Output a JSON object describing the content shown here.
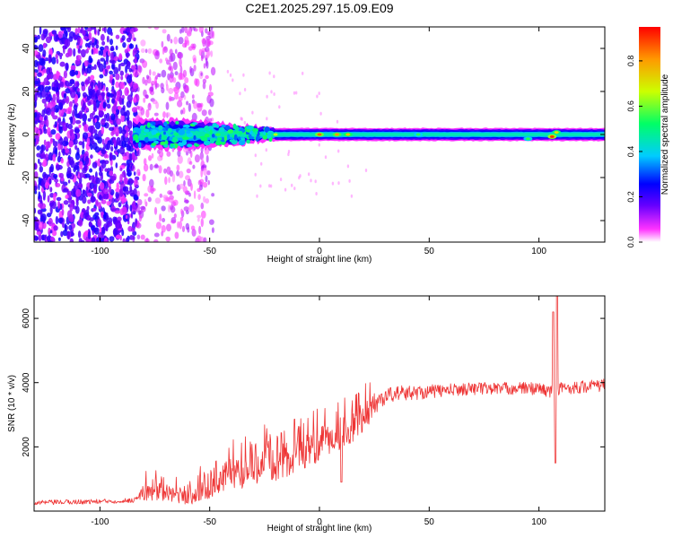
{
  "figure_title": "C2E1.2025.297.15.09.E09",
  "colors": {
    "snr_line": "#ee3333",
    "spectro_background": "#ffffff",
    "axes": "#000000"
  },
  "chart_data": [
    {
      "type": "heatmap",
      "title": "C2E1.2025.297.15.09.E09",
      "xlabel": "Height of straight line (km)",
      "ylabel": "Frequency (Hz)",
      "xlim": [
        -130,
        130
      ],
      "ylim": [
        -50,
        50
      ],
      "x_ticks": [
        -100,
        -50,
        0,
        50,
        100
      ],
      "y_ticks": [
        -40,
        -20,
        0,
        20,
        40
      ],
      "grid": false,
      "colorbar": {
        "label": "Normalized spectral amplitude",
        "range": [
          0.0,
          0.95
        ],
        "ticks": [
          "0.0",
          "0.2",
          "0.4",
          "0.6",
          "0.8"
        ],
        "colormap": [
          "#ffffff",
          "#ff33ff",
          "#6600ff",
          "#0000ff",
          "#00ccff",
          "#00ff66",
          "#ccff00",
          "#ff9900",
          "#ff0000"
        ]
      },
      "signal_band": {
        "center_hz": 0,
        "halfwidth_hz": [
          [
            -85,
            7
          ],
          [
            -60,
            7
          ],
          [
            -40,
            5
          ],
          [
            -30,
            4
          ],
          [
            -20,
            3
          ],
          [
            0,
            3
          ],
          [
            50,
            3
          ],
          [
            100,
            3
          ],
          [
            130,
            3
          ]
        ],
        "noise_regions_km": [
          [
            -130,
            -83
          ],
          [
            -85,
            -48
          ]
        ],
        "hot_spots": [
          {
            "x": 0,
            "y": 0,
            "amp": 0.85
          },
          {
            "x": 8,
            "y": 0,
            "amp": 0.8
          },
          {
            "x": 13,
            "y": 0,
            "amp": 0.75
          },
          {
            "x": 106,
            "y": -1,
            "amp": 0.9
          },
          {
            "x": 108,
            "y": 1,
            "amp": 0.7
          },
          {
            "x": -20,
            "y": 0,
            "amp": 0.65
          },
          {
            "x": 45,
            "y": 0,
            "amp": 0.55
          },
          {
            "x": 95,
            "y": -2,
            "amp": 0.55
          }
        ]
      }
    },
    {
      "type": "line",
      "xlabel": "Height of straight line (km)",
      "ylabel": "SNR (10 * v/v)",
      "xlim": [
        -130,
        130
      ],
      "ylim": [
        0,
        6700
      ],
      "x_ticks": [
        -100,
        -50,
        0,
        50,
        100
      ],
      "y_ticks": [
        2000,
        4000,
        6000
      ],
      "grid": false,
      "series": [
        {
          "name": "SNR",
          "trend_points": [
            [
              -130,
              250
            ],
            [
              -110,
              280
            ],
            [
              -95,
              300
            ],
            [
              -85,
              330
            ],
            [
              -82,
              450
            ],
            [
              -78,
              600
            ],
            [
              -70,
              550
            ],
            [
              -60,
              420
            ],
            [
              -55,
              500
            ],
            [
              -50,
              800
            ],
            [
              -45,
              950
            ],
            [
              -40,
              1100
            ],
            [
              -35,
              1150
            ],
            [
              -30,
              1300
            ],
            [
              -25,
              1450
            ],
            [
              -20,
              1400
            ],
            [
              -15,
              1450
            ],
            [
              -10,
              1700
            ],
            [
              -5,
              1800
            ],
            [
              0,
              2000
            ],
            [
              5,
              2200
            ],
            [
              10,
              2400
            ],
            [
              15,
              2600
            ],
            [
              20,
              2900
            ],
            [
              25,
              3300
            ],
            [
              30,
              3550
            ],
            [
              35,
              3650
            ],
            [
              40,
              3650
            ],
            [
              50,
              3700
            ],
            [
              60,
              3750
            ],
            [
              70,
              3800
            ],
            [
              80,
              3800
            ],
            [
              90,
              3800
            ],
            [
              100,
              3800
            ],
            [
              105,
              3700
            ],
            [
              110,
              3800
            ],
            [
              120,
              3850
            ],
            [
              130,
              3900
            ]
          ],
          "noise_amplitude": [
            [
              -130,
              150
            ],
            [
              -83,
              150
            ],
            [
              -80,
              600
            ],
            [
              -60,
              500
            ],
            [
              -50,
              900
            ],
            [
              -30,
              1100
            ],
            [
              -20,
              1000
            ],
            [
              0,
              1100
            ],
            [
              20,
              1000
            ],
            [
              30,
              500
            ],
            [
              60,
              400
            ],
            [
              130,
              400
            ]
          ],
          "features": [
            {
              "x": 10,
              "y": 900,
              "kind": "dip"
            },
            {
              "x": 106.5,
              "y": 6200,
              "kind": "spike"
            },
            {
              "x": 107.5,
              "y": 1500,
              "kind": "dip"
            },
            {
              "x": 108.3,
              "y": 6700,
              "kind": "spike"
            }
          ]
        }
      ]
    }
  ]
}
